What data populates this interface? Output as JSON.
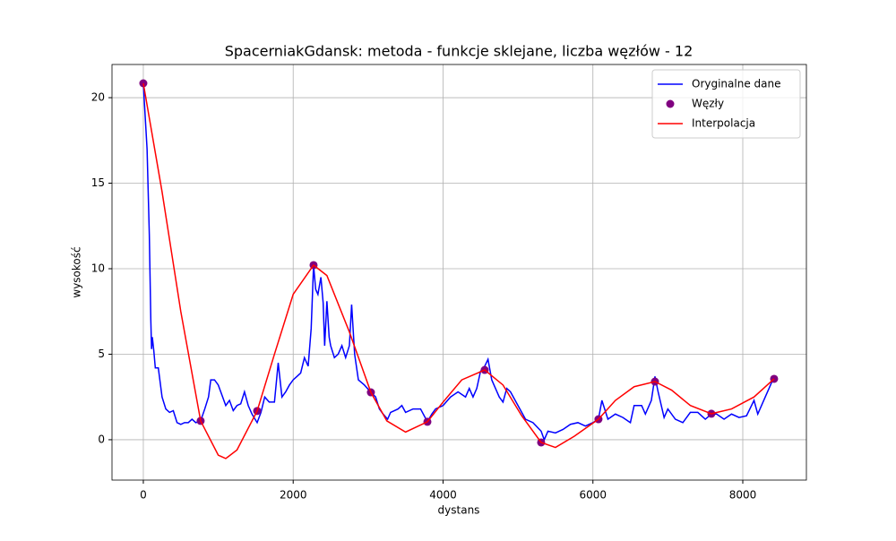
{
  "chart_data": {
    "type": "line",
    "title": "SpacerniakGdansk: metoda - funkcje sklejane, liczba węzłów - 12",
    "xlabel": "dystans",
    "ylabel": "wysokość",
    "xlim": [
      -418,
      8849
    ],
    "ylim": [
      -2.36,
      21.94
    ],
    "xticks": [
      0,
      2000,
      4000,
      6000,
      8000
    ],
    "yticks": [
      0,
      5,
      10,
      15,
      20
    ],
    "grid": true,
    "legend": "upper right",
    "series": [
      {
        "name": "Oryginalne dane",
        "type": "line",
        "color": "#0000ff",
        "x": [
          0,
          50,
          80,
          100,
          110,
          120,
          140,
          160,
          200,
          250,
          300,
          350,
          400,
          450,
          500,
          550,
          600,
          650,
          700,
          765,
          820,
          870,
          900,
          950,
          1000,
          1050,
          1100,
          1150,
          1200,
          1250,
          1300,
          1350,
          1400,
          1450,
          1519,
          1570,
          1620,
          1680,
          1750,
          1800,
          1850,
          1900,
          1950,
          2000,
          2050,
          2100,
          2150,
          2200,
          2240,
          2272,
          2300,
          2330,
          2370,
          2400,
          2420,
          2450,
          2480,
          2500,
          2550,
          2600,
          2650,
          2700,
          2750,
          2780,
          2820,
          2870,
          2950,
          3037,
          3100,
          3150,
          3200,
          3260,
          3300,
          3400,
          3450,
          3500,
          3600,
          3700,
          3791,
          3850,
          3900,
          4000,
          4100,
          4200,
          4300,
          4350,
          4400,
          4450,
          4500,
          4556,
          4600,
          4650,
          4700,
          4750,
          4800,
          4850,
          4900,
          5000,
          5100,
          5200,
          5309,
          5350,
          5400,
          5500,
          5600,
          5700,
          5800,
          5900,
          6000,
          6074,
          6120,
          6200,
          6300,
          6400,
          6500,
          6550,
          6650,
          6700,
          6780,
          6828,
          6870,
          6950,
          7000,
          7100,
          7200,
          7300,
          7400,
          7500,
          7581,
          7650,
          7750,
          7850,
          7950,
          8050,
          8150,
          8200,
          8300,
          8350,
          8400,
          8418
        ],
        "values": [
          20.8,
          17,
          12,
          7,
          5.3,
          6,
          5.2,
          4.2,
          4.2,
          2.5,
          1.8,
          1.6,
          1.7,
          1.0,
          0.9,
          1.0,
          1.0,
          1.2,
          1.0,
          1.1,
          1.8,
          2.5,
          3.5,
          3.5,
          3.2,
          2.6,
          2.0,
          2.3,
          1.7,
          2.0,
          2.1,
          2.8,
          2.0,
          1.5,
          1.0,
          1.6,
          2.5,
          2.2,
          2.2,
          4.5,
          2.5,
          2.8,
          3.2,
          3.5,
          3.7,
          3.9,
          4.8,
          4.3,
          6.5,
          10.2,
          8.8,
          8.5,
          9.5,
          8.0,
          5.5,
          8.1,
          6.0,
          5.5,
          4.8,
          5.0,
          5.5,
          4.8,
          5.5,
          7.9,
          5.0,
          3.5,
          3.2,
          2.77,
          2.5,
          1.8,
          1.5,
          1.2,
          1.6,
          1.8,
          2.0,
          1.6,
          1.8,
          1.8,
          1.05,
          1.5,
          1.8,
          2.0,
          2.5,
          2.8,
          2.5,
          3.0,
          2.5,
          3.0,
          4.0,
          4.3,
          4.7,
          3.5,
          3.0,
          2.5,
          2.2,
          3.0,
          2.8,
          2.0,
          1.2,
          1.0,
          0.5,
          0.0,
          0.5,
          0.4,
          0.6,
          0.9,
          1.0,
          0.8,
          1.0,
          1.2,
          2.3,
          1.2,
          1.5,
          1.3,
          1.0,
          2.0,
          2.0,
          1.5,
          2.3,
          3.7,
          2.8,
          1.3,
          1.8,
          1.2,
          1.0,
          1.6,
          1.6,
          1.2,
          1.5,
          1.5,
          1.2,
          1.5,
          1.3,
          1.4,
          2.3,
          1.5,
          2.5,
          3.0,
          3.5,
          3.56
        ]
      },
      {
        "name": "Węzły",
        "type": "scatter",
        "color": "#800080",
        "x": [
          0,
          765,
          1519,
          2272,
          3037,
          3791,
          4556,
          5309,
          6074,
          6828,
          7581,
          8418
        ],
        "values": [
          20.84,
          1.1,
          1.68,
          10.21,
          2.77,
          1.05,
          4.08,
          -0.16,
          1.2,
          3.4,
          1.52,
          3.56
        ]
      },
      {
        "name": "Interpolacja",
        "type": "line",
        "color": "#ff0000",
        "x": [
          0,
          250,
          500,
          765,
          1000,
          1100,
          1250,
          1519,
          1750,
          2000,
          2272,
          2450,
          2750,
          3037,
          3250,
          3500,
          3791,
          4000,
          4250,
          4556,
          4800,
          5050,
          5309,
          5500,
          5750,
          6074,
          6300,
          6550,
          6828,
          7050,
          7300,
          7581,
          7850,
          8150,
          8418
        ],
        "values": [
          20.84,
          14.5,
          7.5,
          1.1,
          -0.9,
          -1.1,
          -0.6,
          1.68,
          5.0,
          8.5,
          10.21,
          9.6,
          6.3,
          2.77,
          1.1,
          0.45,
          1.05,
          2.2,
          3.5,
          4.08,
          3.2,
          1.4,
          -0.16,
          -0.45,
          0.2,
          1.2,
          2.3,
          3.1,
          3.4,
          2.9,
          2.0,
          1.52,
          1.8,
          2.5,
          3.56
        ]
      }
    ]
  }
}
